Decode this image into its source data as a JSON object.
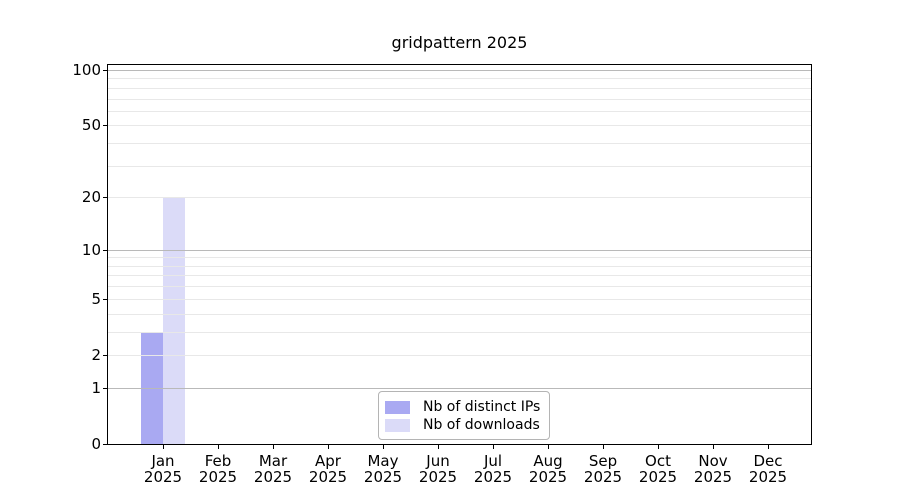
{
  "chart_data": {
    "type": "bar",
    "title": "gridpattern 2025",
    "months": [
      "Jan",
      "Feb",
      "Mar",
      "Apr",
      "May",
      "Jun",
      "Jul",
      "Aug",
      "Sep",
      "Oct",
      "Nov",
      "Dec"
    ],
    "year": "2025",
    "series": [
      {
        "name": "Nb of distinct IPs",
        "color": "#a9a9f2",
        "values": [
          3,
          0,
          0,
          0,
          0,
          0,
          0,
          0,
          0,
          0,
          0,
          0
        ]
      },
      {
        "name": "Nb of downloads",
        "color": "#dbdbf8",
        "values": [
          20,
          0,
          0,
          0,
          0,
          0,
          0,
          0,
          0,
          0,
          0,
          0
        ]
      }
    ],
    "xlabel": "",
    "ylabel": "",
    "yscale": "log1p",
    "ylim": [
      0,
      107
    ],
    "yticks": [
      0,
      1,
      2,
      5,
      10,
      20,
      50,
      100
    ],
    "grid": {
      "on": true,
      "major_values": [
        1,
        10,
        100
      ],
      "minor_values": [
        2,
        3,
        4,
        5,
        6,
        7,
        8,
        9,
        20,
        30,
        40,
        50,
        60,
        70,
        80,
        90
      ],
      "major_color": "#b9b9b9",
      "minor_color": "#e8e8e8"
    },
    "legend_position": "bottom-center",
    "axis_color": "#000000",
    "background_color": "#ffffff"
  }
}
